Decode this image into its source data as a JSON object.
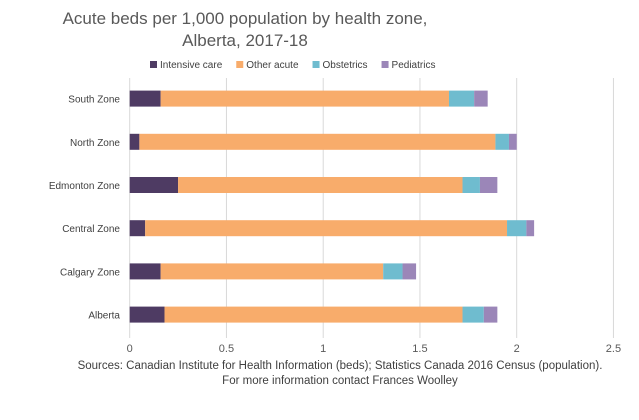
{
  "chart_data": {
    "type": "bar",
    "orientation": "horizontal",
    "stacked": true,
    "title": [
      "Acute beds per 1,000 population by health zone,",
      "Alberta, 2017-18"
    ],
    "categories": [
      "South Zone",
      "North Zone",
      "Edmonton Zone",
      "Central Zone",
      "Calgary Zone",
      "Alberta"
    ],
    "series": [
      {
        "name": "Intensive care",
        "color": "#4e3b63",
        "values": [
          0.16,
          0.05,
          0.25,
          0.08,
          0.16,
          0.18
        ]
      },
      {
        "name": "Other acute",
        "color": "#f8ac6b",
        "values": [
          1.49,
          1.84,
          1.47,
          1.87,
          1.15,
          1.54
        ]
      },
      {
        "name": "Obstetrics",
        "color": "#6fbccf",
        "values": [
          0.13,
          0.07,
          0.09,
          0.1,
          0.1,
          0.11
        ]
      },
      {
        "name": "Pediatrics",
        "color": "#9b86b8",
        "values": [
          0.07,
          0.04,
          0.09,
          0.04,
          0.07,
          0.07
        ]
      }
    ],
    "xlim": [
      0,
      2.5
    ],
    "xticks": [
      "0",
      "0.5",
      "1",
      "1.5",
      "2",
      "2.5"
    ],
    "grid": true,
    "legend": "top",
    "sources": [
      "Sources: Canadian Institute for Health Information (beds); Statistics Canada 2016 Census (population).",
      "For more information contact Frances Woolley"
    ]
  }
}
